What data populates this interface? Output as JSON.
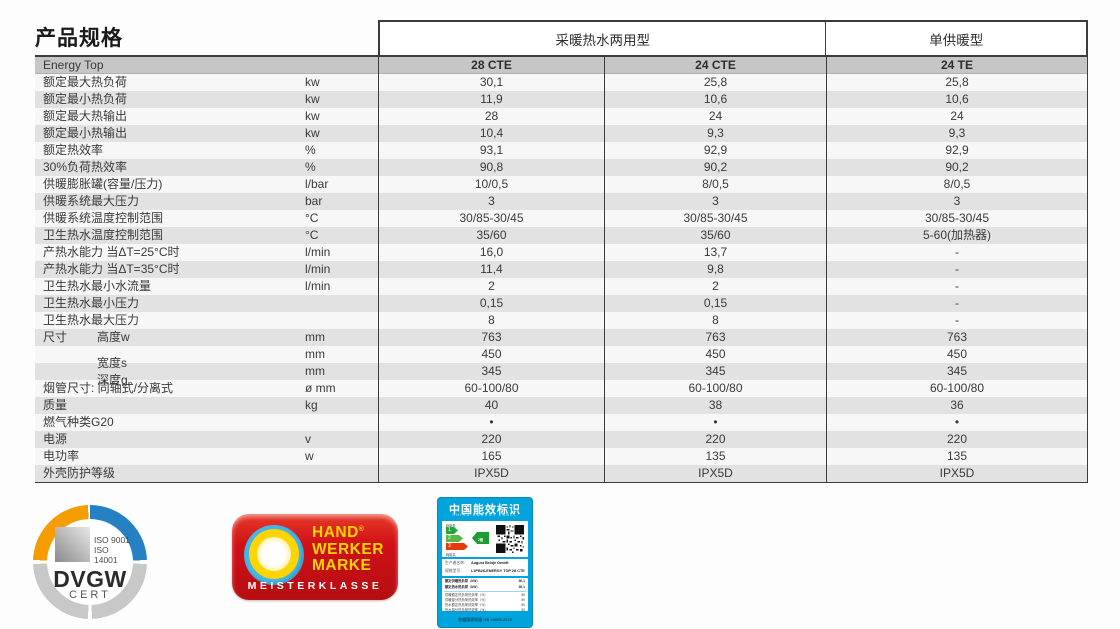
{
  "title": "产品规格",
  "table": {
    "groups": [
      {
        "label": "采暖热水两用型"
      },
      {
        "label": "单供暖型"
      }
    ],
    "series_label": "Energy Top",
    "models": [
      "28 CTE",
      "24 CTE",
      "24 TE"
    ],
    "rows": [
      {
        "label": "额定最大热负荷",
        "unit": "kw",
        "v": [
          "30,1",
          "25,8",
          "25,8"
        ]
      },
      {
        "label": "额定最小热负荷",
        "unit": "kw",
        "v": [
          "11,9",
          "10,6",
          "10,6"
        ]
      },
      {
        "label": "额定最大热输出",
        "unit": "kw",
        "v": [
          "28",
          "24",
          "24"
        ]
      },
      {
        "label": "额定最小热输出",
        "unit": "kw",
        "v": [
          "10,4",
          "9,3",
          "9,3"
        ]
      },
      {
        "label": "额定热效率",
        "unit": "%",
        "v": [
          "93,1",
          "92,9",
          "92,9"
        ]
      },
      {
        "label": "30%负荷热效率",
        "unit": "%",
        "v": [
          "90,8",
          "90,2",
          "90,2"
        ]
      },
      {
        "label": "供暖膨胀罐(容量/压力)",
        "unit": "l/bar",
        "v": [
          "10/0,5",
          "8/0,5",
          "8/0,5"
        ]
      },
      {
        "label": "供暖系统最大压力",
        "unit": "bar",
        "v": [
          "3",
          "3",
          "3"
        ]
      },
      {
        "label": "供暖系统温度控制范围",
        "unit": "°C",
        "v": [
          "30/85-30/45",
          "30/85-30/45",
          "30/85-30/45"
        ]
      },
      {
        "label": "卫生热水温度控制范围",
        "unit": "°C",
        "v": [
          "35/60",
          "35/60",
          "5-60(加热器)"
        ]
      },
      {
        "label": "产热水能力 当ΔT=25°C时",
        "unit": "l/min",
        "v": [
          "16,0",
          "13,7",
          "-"
        ]
      },
      {
        "label": "产热水能力 当ΔT=35°C时",
        "unit": "l/min",
        "v": [
          "11,4",
          "9,8",
          "-"
        ]
      },
      {
        "label": "卫生热水最小水流量",
        "unit": "l/min",
        "v": [
          "2",
          "2",
          "-"
        ]
      },
      {
        "label": "卫生热水最小压力",
        "unit": "",
        "v": [
          "0,15",
          "0,15",
          "-"
        ]
      },
      {
        "label": "卫生热水最大压力",
        "unit": "",
        "v": [
          "8",
          "8",
          "-"
        ]
      },
      {
        "label": "尺寸",
        "sub": "高度w",
        "unit": "mm",
        "v": [
          "763",
          "763",
          "763"
        ]
      },
      {
        "label": "",
        "sub": "宽度s",
        "unit": "mm",
        "v": [
          "450",
          "450",
          "450"
        ]
      },
      {
        "label": "",
        "sub": "深度g",
        "unit": "mm",
        "v": [
          "345",
          "345",
          "345"
        ]
      },
      {
        "label": "烟管尺寸: 同轴式/分离式",
        "unit": "ø mm",
        "v": [
          "60-100/80",
          "60-100/80",
          "60-100/80"
        ]
      },
      {
        "label": "质量",
        "unit": "kg",
        "v": [
          "40",
          "38",
          "36"
        ]
      },
      {
        "label": "燃气种类G20",
        "unit": "",
        "v": [
          "•",
          "•",
          "•"
        ]
      },
      {
        "label": "电源",
        "unit": "v",
        "v": [
          "220",
          "220",
          "220"
        ]
      },
      {
        "label": "电功率",
        "unit": "w",
        "v": [
          "165",
          "135",
          "135"
        ]
      },
      {
        "label": "外壳防护等级",
        "unit": "",
        "v": [
          "IPX5D",
          "IPX5D",
          "IPX5D"
        ]
      }
    ]
  },
  "logos": {
    "dvgw": {
      "iso_lines": "ISO 9001\nISO 14001",
      "name": "DVGW",
      "cert": "CERT",
      "colors": {
        "orange": "#f59c00",
        "blue": "#2581c4",
        "gray": "#c8c8c8"
      }
    },
    "handwerker": {
      "line1": "HAND",
      "reg_mark": "®",
      "line2": "WERKER",
      "line3": "MARKE",
      "banner": "MEISTERKLASSE",
      "colors": {
        "red": "#d01116",
        "yellow": "#ffd400",
        "blue": "#45b5e6"
      }
    },
    "energy_label": {
      "title": "中国能效标识",
      "subtitle": "CHINA ENERGY LABEL",
      "low_label": "耗能低",
      "high_label": "耗能高",
      "grade": "2",
      "grade_suffix": "级",
      "arrows": [
        {
          "n": "1",
          "color": "#23a638"
        },
        {
          "n": "2",
          "color": "#57b847"
        },
        {
          "n": "3",
          "color": "#e8380d"
        }
      ],
      "producer_label": "生产者名称：",
      "producer": "August Brötje GmbH",
      "model_label": "规格型号：",
      "model": "L1PB26-ENERGY TOP 28 CTE",
      "spec_rows": [
        {
          "label": "额定供暖热负荷（kW）",
          "value": "30,1",
          "strong": true
        },
        {
          "label": "额定热水热负荷（kW）",
          "value": "30,1",
          "strong": true
        },
        {
          "label": "供暖额定热负荷热效率（%）",
          "value": "89"
        },
        {
          "label": "供暖部分热负荷热效率（%）",
          "value": "89"
        },
        {
          "label": "热水额定热负荷热效率（%）",
          "value": "85"
        },
        {
          "label": "热水部分热负荷热效率（%）",
          "value": "85"
        }
      ],
      "standard": "依据国家标准 GB 20665-2015",
      "colors": {
        "blue": "#00a3dc"
      }
    }
  }
}
